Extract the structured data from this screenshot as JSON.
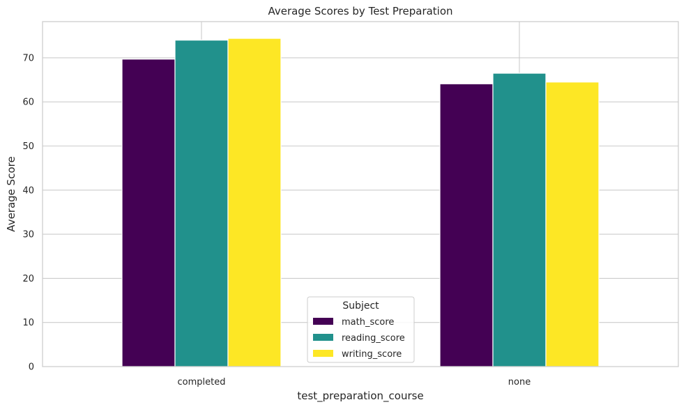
{
  "chart_data": {
    "type": "bar",
    "title": "Average Scores by Test Preparation",
    "xlabel": "test_preparation_course",
    "ylabel": "Average Score",
    "categories": [
      "completed",
      "none"
    ],
    "series": [
      {
        "name": "math_score",
        "values": [
          69.7,
          64.1
        ],
        "color": "#440154"
      },
      {
        "name": "reading_score",
        "values": [
          74.0,
          66.5
        ],
        "color": "#21918c"
      },
      {
        "name": "writing_score",
        "values": [
          74.4,
          64.5
        ],
        "color": "#fde725"
      }
    ],
    "ylim": [
      0,
      78.2
    ],
    "yticks": [
      0,
      10,
      20,
      30,
      40,
      50,
      60,
      70
    ],
    "ytick_labels": [
      "0",
      "10",
      "20",
      "30",
      "40",
      "50",
      "60",
      "70"
    ],
    "grid": true,
    "legend": {
      "title": "Subject",
      "placement": "bottom-center"
    }
  }
}
